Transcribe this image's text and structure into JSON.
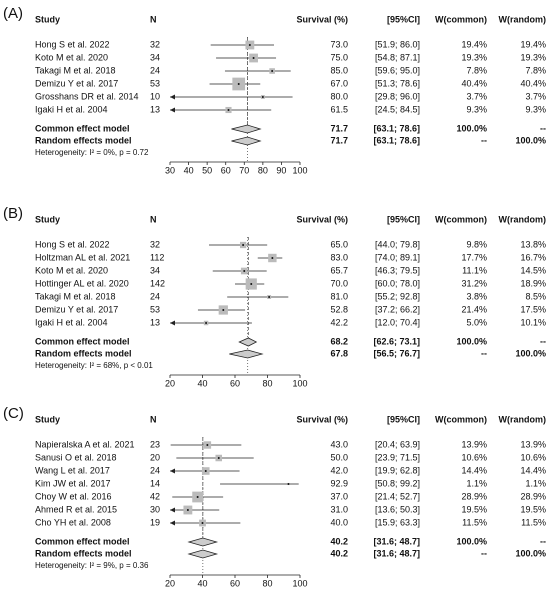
{
  "chart_data": [
    {
      "type": "forest",
      "panel": "(A)",
      "columns": [
        "Study",
        "N",
        "Survival (%)",
        "[95%CI]",
        "W(common)",
        "W(random)"
      ],
      "studies": [
        {
          "study": "Hong S et al. 2022",
          "n": 32,
          "est": 73,
          "est_label": "73.0",
          "ci": "[51.9; 86.0]",
          "lo": 51.9,
          "hi": 86,
          "weight": 19.4,
          "w_common": "19.4%",
          "w_random": "19.4%"
        },
        {
          "study": "Koto M et al. 2020",
          "n": 34,
          "est": 75,
          "est_label": "75.0",
          "ci": "[54.8; 87.1]",
          "lo": 54.8,
          "hi": 87.1,
          "weight": 19.3,
          "w_common": "19.3%",
          "w_random": "19.3%"
        },
        {
          "study": "Takagi M et al. 2018",
          "n": 24,
          "est": 85,
          "est_label": "85.0",
          "ci": "[59.6; 95.0]",
          "lo": 59.6,
          "hi": 95,
          "weight": 7.8,
          "w_common": "7.8%",
          "w_random": "7.8%"
        },
        {
          "study": "Demizu Y et al. 2017",
          "n": 53,
          "est": 67,
          "est_label": "67.0",
          "ci": "[51.3; 78.6]",
          "lo": 51.3,
          "hi": 78.6,
          "weight": 40.4,
          "w_common": "40.4%",
          "w_random": "40.4%"
        },
        {
          "study": "Grosshans DR et al. 2014",
          "n": 10,
          "est": 80,
          "est_label": "80.0",
          "ci": "[29.8; 96.0]",
          "lo": 29.8,
          "hi": 96,
          "weight": 3.7,
          "w_common": "3.7%",
          "w_random": "3.7%"
        },
        {
          "study": "Igaki H et al. 2004",
          "n": 13,
          "est": 61.5,
          "est_label": "61.5",
          "ci": "[24.5; 84.5]",
          "lo": 24.5,
          "hi": 84.5,
          "weight": 9.3,
          "w_common": "9.3%",
          "w_random": "9.3%"
        }
      ],
      "pooled": [
        {
          "label": "Common effect model",
          "est": 71.7,
          "ci": "[63.1; 78.6]",
          "lo": 63.1,
          "hi": 78.6,
          "w_common": "100.0%",
          "w_random": "--"
        },
        {
          "label": "Random effects model",
          "est": 71.7,
          "ci": "[63.1; 78.6]",
          "lo": 63.1,
          "hi": 78.6,
          "w_common": "--",
          "w_random": "100.0%"
        }
      ],
      "heterogeneity": "Heterogeneity: I² = 0%, p = 0.72",
      "xlim": [
        30,
        100
      ],
      "xticks": [
        30,
        40,
        50,
        60,
        70,
        80,
        90,
        100
      ]
    },
    {
      "type": "forest",
      "panel": "(B)",
      "columns": [
        "Study",
        "N",
        "Survival (%)",
        "[95%CI]",
        "W(common)",
        "W(random)"
      ],
      "studies": [
        {
          "study": "Hong S et al. 2022",
          "n": 32,
          "est": 65,
          "est_label": "65.0",
          "ci": "[44.0; 79.8]",
          "lo": 44,
          "hi": 79.8,
          "weight": 9.8,
          "w_common": "9.8%",
          "w_random": "13.8%"
        },
        {
          "study": "Holtzman AL et al. 2021",
          "n": 112,
          "est": 83,
          "est_label": "83.0",
          "ci": "[74.0; 89.1]",
          "lo": 74,
          "hi": 89.1,
          "weight": 17.7,
          "w_common": "17.7%",
          "w_random": "16.7%"
        },
        {
          "study": "Koto M et al. 2020",
          "n": 34,
          "est": 65.7,
          "est_label": "65.7",
          "ci": "[46.3; 79.5]",
          "lo": 46.3,
          "hi": 79.5,
          "weight": 11.1,
          "w_common": "11.1%",
          "w_random": "14.5%"
        },
        {
          "study": "Hottinger AL et al. 2020",
          "n": 142,
          "est": 70,
          "est_label": "70.0",
          "ci": "[60.0; 78.0]",
          "lo": 60,
          "hi": 78,
          "weight": 31.2,
          "w_common": "31.2%",
          "w_random": "18.9%"
        },
        {
          "study": "Takagi M et al. 2018",
          "n": 24,
          "est": 81,
          "est_label": "81.0",
          "ci": "[55.2; 92.8]",
          "lo": 55.2,
          "hi": 92.8,
          "weight": 3.8,
          "w_common": "3.8%",
          "w_random": "8.5%"
        },
        {
          "study": "Demizu Y et al. 2017",
          "n": 53,
          "est": 52.8,
          "est_label": "52.8",
          "ci": "[37.2; 66.2]",
          "lo": 37.2,
          "hi": 66.2,
          "weight": 21.4,
          "w_common": "21.4%",
          "w_random": "17.5%"
        },
        {
          "study": "Igaki H et al. 2004",
          "n": 13,
          "est": 42.2,
          "est_label": "42.2",
          "ci": "[12.0; 70.4]",
          "lo": 12,
          "hi": 70.4,
          "weight": 5,
          "w_common": "5.0%",
          "w_random": "10.1%"
        }
      ],
      "pooled": [
        {
          "label": "Common effect model",
          "est": 68.2,
          "ci": "[62.6; 73.1]",
          "lo": 62.6,
          "hi": 73.1,
          "w_common": "100.0%",
          "w_random": "--"
        },
        {
          "label": "Random effects model",
          "est": 67.8,
          "ci": "[56.5; 76.7]",
          "lo": 56.5,
          "hi": 76.7,
          "w_common": "--",
          "w_random": "100.0%"
        }
      ],
      "heterogeneity": "Heterogeneity: I² = 68%, p < 0.01",
      "xlim": [
        20,
        100
      ],
      "xticks": [
        20,
        40,
        60,
        80,
        100
      ]
    },
    {
      "type": "forest",
      "panel": "(C)",
      "columns": [
        "Study",
        "N",
        "Survival (%)",
        "[95%CI]",
        "W(common)",
        "W(random)"
      ],
      "studies": [
        {
          "study": "Napieralska A et al. 2021",
          "n": 23,
          "est": 43,
          "est_label": "43.0",
          "ci": "[20.4; 63.9]",
          "lo": 20.4,
          "hi": 63.9,
          "weight": 13.9,
          "w_common": "13.9%",
          "w_random": "13.9%"
        },
        {
          "study": "Sanusi O et al. 2018",
          "n": 20,
          "est": 50,
          "est_label": "50.0",
          "ci": "[23.9; 71.5]",
          "lo": 23.9,
          "hi": 71.5,
          "weight": 10.6,
          "w_common": "10.6%",
          "w_random": "10.6%"
        },
        {
          "study": "Wang L et al. 2017",
          "n": 24,
          "est": 42,
          "est_label": "42.0",
          "ci": "[19.9; 62.8]",
          "lo": 19.9,
          "hi": 62.8,
          "weight": 14.4,
          "w_common": "14.4%",
          "w_random": "14.4%"
        },
        {
          "study": "Kim JW et al. 2017",
          "n": 14,
          "est": 92.9,
          "est_label": "92.9",
          "ci": "[50.8; 99.2]",
          "lo": 50.8,
          "hi": 99.2,
          "weight": 1.1,
          "w_common": "1.1%",
          "w_random": "1.1%"
        },
        {
          "study": "Choy W et al. 2016",
          "n": 42,
          "est": 37,
          "est_label": "37.0",
          "ci": "[21.4; 52.7]",
          "lo": 21.4,
          "hi": 52.7,
          "weight": 28.9,
          "w_common": "28.9%",
          "w_random": "28.9%"
        },
        {
          "study": "Ahmed R et al. 2015",
          "n": 30,
          "est": 31,
          "est_label": "31.0",
          "ci": "[13.6; 50.3]",
          "lo": 13.6,
          "hi": 50.3,
          "weight": 19.5,
          "w_common": "19.5%",
          "w_random": "19.5%"
        },
        {
          "study": "Cho YH et al. 2008",
          "n": 19,
          "est": 40,
          "est_label": "40.0",
          "ci": "[15.9; 63.3]",
          "lo": 15.9,
          "hi": 63.3,
          "weight": 11.5,
          "w_common": "11.5%",
          "w_random": "11.5%"
        }
      ],
      "pooled": [
        {
          "label": "Common effect model",
          "est": 40.2,
          "ci": "[31.6; 48.7]",
          "lo": 31.6,
          "hi": 48.7,
          "w_common": "100.0%",
          "w_random": "--"
        },
        {
          "label": "Random effects model",
          "est": 40.2,
          "ci": "[31.6; 48.7]",
          "lo": 31.6,
          "hi": 48.7,
          "w_common": "--",
          "w_random": "100.0%"
        }
      ],
      "heterogeneity": "Heterogeneity: I² = 9%, p = 0.36",
      "xlim": [
        20,
        100
      ],
      "xticks": [
        20,
        40,
        60,
        80,
        100
      ]
    }
  ]
}
